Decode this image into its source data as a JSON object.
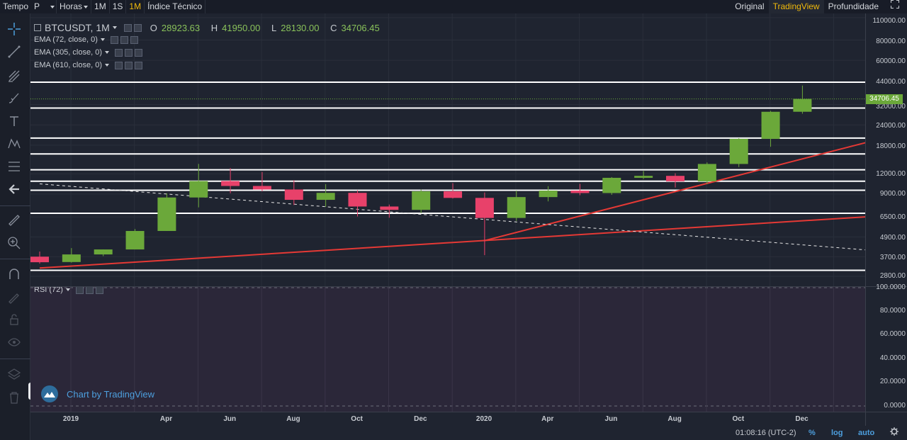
{
  "toolbar": {
    "time_label": "Tempo",
    "period_value": "P",
    "hours_label": "Horas",
    "tf_1m_label": "1M",
    "tf_1s_label": "1S",
    "tf_1M_label": "1M",
    "indicators_label": "Índice Técnico",
    "view_original": "Original",
    "view_tradingview": "TradingView",
    "view_depth": "Profundidade"
  },
  "legend": {
    "symbol": "BTCUSDT, 1M",
    "open_label": "O",
    "open": "28923.63",
    "high_label": "H",
    "high": "41950.00",
    "low_label": "L",
    "low": "28130.00",
    "close_label": "C",
    "close": "34706.45",
    "studies": [
      "EMA (72, close, 0)",
      "EMA (305, close, 0)",
      "EMA (610, close, 0)"
    ],
    "rsi": "RSI (72)"
  },
  "price_tag": "34706.45",
  "watermark": "Chart by TradingView",
  "bottom": {
    "clock": "01:08:16 (UTC-2)",
    "percent": "%",
    "log": "log",
    "auto": "auto"
  },
  "colors": {
    "up": "#6ba83a",
    "down": "#e8416a",
    "trendline": "#e53935",
    "level": "#ffffff",
    "accent": "#f0b90b",
    "link": "#4d9fde"
  },
  "icons": [
    "crosshair-icon",
    "trend-line-icon",
    "pitchfork-icon",
    "brush-icon",
    "text-icon",
    "pattern-icon",
    "fib-icon",
    "back-arrow-icon",
    "ruler-icon",
    "zoom-in-icon",
    "magnet-icon",
    "lock-drawing-icon",
    "unlock-icon",
    "eye-icon",
    "layers-icon",
    "trash-icon",
    "fullscreen-icon",
    "settings-icon"
  ],
  "chart_data": {
    "type": "candlestick",
    "scale": "log",
    "y_ticks": [
      "110000.00",
      "80000.00",
      "60000.00",
      "44000.00",
      "32000.00",
      "24000.00",
      "18000.00",
      "12000.00",
      "9000.00",
      "6500.00",
      "4900.00",
      "3700.00",
      "2800.00"
    ],
    "x_ticks": [
      "2019",
      "Apr",
      "Jun",
      "Aug",
      "Oct",
      "Dec",
      "2020",
      "Apr",
      "Jun",
      "Aug",
      "Oct",
      "Dec"
    ],
    "rsi_ticks": [
      "100.0000",
      "80.0000",
      "60.0000",
      "40.0000",
      "20.0000",
      "0.0000"
    ],
    "candles": [
      {
        "o": 3700,
        "h": 3980,
        "l": 3350,
        "c": 3420
      },
      {
        "o": 3430,
        "h": 4180,
        "l": 3400,
        "c": 3820
      },
      {
        "o": 3820,
        "h": 4100,
        "l": 3730,
        "c": 4100
      },
      {
        "o": 4100,
        "h": 5480,
        "l": 4100,
        "c": 5330
      },
      {
        "o": 5330,
        "h": 9100,
        "l": 5330,
        "c": 8570
      },
      {
        "o": 8570,
        "h": 13800,
        "l": 7450,
        "c": 10820
      },
      {
        "o": 10820,
        "h": 13000,
        "l": 9100,
        "c": 10090
      },
      {
        "o": 10090,
        "h": 12300,
        "l": 9350,
        "c": 9600
      },
      {
        "o": 9600,
        "h": 10950,
        "l": 7700,
        "c": 8290
      },
      {
        "o": 8290,
        "h": 10350,
        "l": 7500,
        "c": 9150
      },
      {
        "o": 9150,
        "h": 9500,
        "l": 6550,
        "c": 7540
      },
      {
        "o": 7540,
        "h": 7750,
        "l": 6430,
        "c": 7190
      },
      {
        "o": 7190,
        "h": 9580,
        "l": 6860,
        "c": 9350
      },
      {
        "o": 9350,
        "h": 10500,
        "l": 8450,
        "c": 8520
      },
      {
        "o": 8520,
        "h": 9200,
        "l": 3780,
        "c": 6410
      },
      {
        "o": 6410,
        "h": 9460,
        "l": 6150,
        "c": 8620
      },
      {
        "o": 8620,
        "h": 10060,
        "l": 8110,
        "c": 9450
      },
      {
        "o": 9450,
        "h": 10400,
        "l": 8850,
        "c": 9130
      },
      {
        "o": 9130,
        "h": 11450,
        "l": 8900,
        "c": 11330
      },
      {
        "o": 11330,
        "h": 12480,
        "l": 11150,
        "c": 11650
      },
      {
        "o": 11650,
        "h": 12070,
        "l": 9880,
        "c": 10780
      },
      {
        "o": 10780,
        "h": 14100,
        "l": 10370,
        "c": 13790
      },
      {
        "o": 13790,
        "h": 19900,
        "l": 13200,
        "c": 19700
      },
      {
        "o": 19700,
        "h": 29300,
        "l": 17600,
        "c": 28920
      },
      {
        "o": 28923.63,
        "h": 41950,
        "l": 28130,
        "c": 34706.45
      }
    ],
    "levels": [
      44000,
      30500,
      19900,
      15900,
      12700,
      10800,
      9500,
      6850,
      3050
    ],
    "trendlines": [
      {
        "from": [
          0,
          3150
        ],
        "to": [
          26.5,
          6600
        ]
      },
      {
        "from": [
          14,
          4650
        ],
        "to": [
          26.5,
          19800
        ]
      }
    ],
    "dashed_trendline": {
      "from": [
        0,
        10400
      ],
      "to": [
        26.5,
        4000
      ]
    }
  }
}
